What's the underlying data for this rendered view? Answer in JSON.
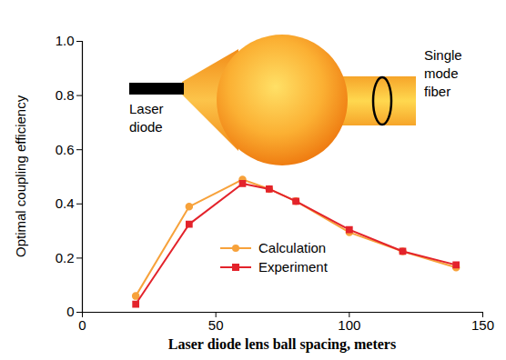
{
  "chart_data": {
    "type": "line",
    "x_label": "Laser diode lens ball spacing, meters",
    "y_label": "Optimal coupling efficiency",
    "x": [
      20,
      40,
      60,
      70,
      80,
      100,
      120,
      140
    ],
    "series": [
      {
        "name": "Calculation",
        "color": "#f7a23b",
        "marker": "circle",
        "values": [
          0.06,
          0.39,
          0.49,
          0.455,
          0.41,
          0.295,
          0.225,
          0.165
        ]
      },
      {
        "name": "Experiment",
        "color": "#e3232b",
        "marker": "square",
        "values": [
          0.03,
          0.325,
          0.475,
          0.455,
          0.41,
          0.305,
          0.225,
          0.175
        ]
      }
    ],
    "xlim": [
      0,
      150
    ],
    "xticks": [
      0,
      50,
      100,
      150
    ],
    "ylim": [
      0,
      1
    ],
    "yticks": [
      0,
      0.2,
      0.4,
      0.6,
      0.8,
      {
        "value": 1,
        "label": "1.0"
      }
    ],
    "legend": "lower right",
    "annotations": [
      "Laser diode",
      "Single mode fiber"
    ]
  }
}
